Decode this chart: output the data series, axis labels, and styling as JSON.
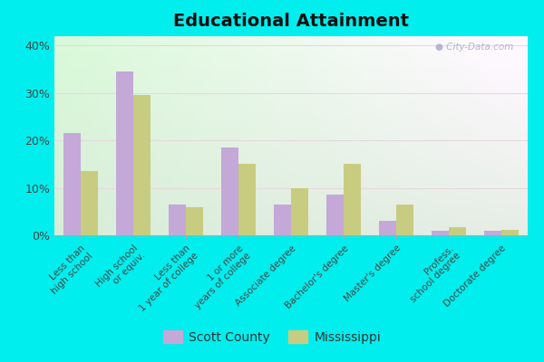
{
  "title": "Educational Attainment",
  "categories": [
    "Less than\nhigh school",
    "High school\nor equiv.",
    "Less than\n1 year of college",
    "1 or more\nyears of college",
    "Associate degree",
    "Bachelor's degree",
    "Master's degree",
    "Profess.\nschool degree",
    "Doctorate degree"
  ],
  "scott_county": [
    21.5,
    34.5,
    6.5,
    18.5,
    6.5,
    8.5,
    3.0,
    1.0,
    1.0
  ],
  "mississippi": [
    13.5,
    29.5,
    6.0,
    15.0,
    10.0,
    15.0,
    6.5,
    1.8,
    1.2
  ],
  "scott_color": "#c4a8d8",
  "miss_color": "#c8cc80",
  "fig_bg_color": "#00eeee",
  "ylabel_vals": [
    "0%",
    "10%",
    "20%",
    "30%",
    "40%"
  ],
  "yticks": [
    0,
    10,
    20,
    30,
    40
  ],
  "ylim": [
    0,
    42
  ],
  "legend_scott": "Scott County",
  "legend_miss": "Mississippi",
  "watermark": "City-Data.com",
  "grid_color": "#e8d8e0",
  "tick_label_color": "#444444",
  "title_color": "#111111"
}
